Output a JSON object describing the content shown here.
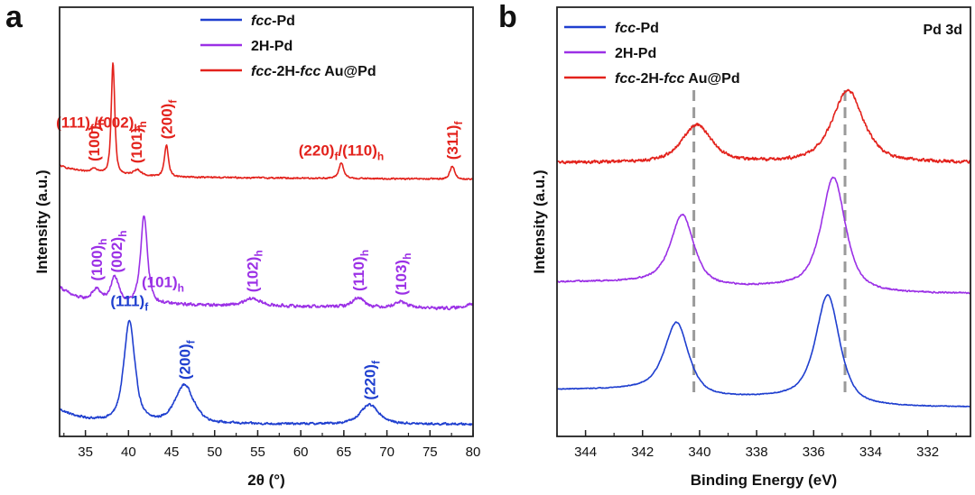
{
  "colors": {
    "fcc_pd": "#1f3fcf",
    "h2_pd": "#9b30e6",
    "au_pd": "#e3221c",
    "ref_line": "#9a9a9a"
  },
  "chart_data": [
    {
      "panel": "a",
      "type": "line",
      "title": "",
      "xlabel": "2θ (°)",
      "ylabel": "Intensity (a.u.)",
      "xlim": [
        32,
        80
      ],
      "xticks": [
        "35",
        "40",
        "45",
        "50",
        "55",
        "60",
        "65",
        "70",
        "75",
        "80"
      ],
      "yticks": [],
      "legend": {
        "position": "top-center",
        "entries": [
          {
            "pre": "",
            "ital": "fcc",
            "post": "-Pd",
            "series": "fcc"
          },
          {
            "pre": "2H-Pd",
            "ital": "",
            "post": "",
            "series": "h2"
          },
          {
            "pre": "",
            "ital": "fcc",
            "post": "-2H-",
            "ital2": "fcc",
            "post2": " Au@Pd",
            "series": "au"
          }
        ]
      },
      "series": [
        {
          "name": "fcc-Pd",
          "key": "fcc",
          "baseline": 0.0,
          "slope": 0.0,
          "start": 0.12,
          "decay": 3.0,
          "noise": 0.013,
          "peaks": [
            {
              "x": 40.1,
              "h": 0.84,
              "w": 0.95
            },
            {
              "x": 46.5,
              "h": 0.32,
              "w": 1.6
            },
            {
              "x": 68.0,
              "h": 0.16,
              "w": 1.6
            }
          ]
        },
        {
          "name": "2H-Pd",
          "key": "h2",
          "baseline": 1.0,
          "slope": -0.0009,
          "start": 0.14,
          "decay": 2.0,
          "noise": 0.018,
          "peaks": [
            {
              "x": 36.3,
              "h": 0.1,
              "w": 0.8
            },
            {
              "x": 38.4,
              "h": 0.21,
              "w": 0.7
            },
            {
              "x": 41.8,
              "h": 0.72,
              "w": 0.6
            },
            {
              "x": 54.4,
              "h": 0.06,
              "w": 1.3
            },
            {
              "x": 66.7,
              "h": 0.08,
              "w": 1.0
            },
            {
              "x": 71.6,
              "h": 0.05,
              "w": 1.0
            },
            {
              "x": 79.6,
              "h": 0.04,
              "w": 0.8
            }
          ]
        },
        {
          "name": "fcc-2H-fcc Au@Pd",
          "key": "au",
          "baseline": 2.05,
          "slope": -0.0005,
          "start": 0.09,
          "decay": 3.5,
          "noise": 0.009,
          "peaks": [
            {
              "x": 36.0,
              "h": 0.04,
              "w": 0.6
            },
            {
              "x": 38.2,
              "h": 0.93,
              "w": 0.3
            },
            {
              "x": 41.0,
              "h": 0.05,
              "w": 0.7
            },
            {
              "x": 44.4,
              "h": 0.26,
              "w": 0.35
            },
            {
              "x": 64.7,
              "h": 0.13,
              "w": 0.4
            },
            {
              "x": 77.6,
              "h": 0.11,
              "w": 0.4
            }
          ]
        }
      ],
      "peak_labels": [
        {
          "main": "(111)",
          "sub": "f",
          "series": "fcc",
          "x": 40.1,
          "dy": 0.12
        },
        {
          "main": "(200)",
          "sub": "f",
          "series": "fcc",
          "x": 46.5,
          "dy": 0.04,
          "rotate": true
        },
        {
          "main": "(220)",
          "sub": "f",
          "series": "fcc",
          "x": 68.0,
          "dy": 0.04,
          "rotate": true
        },
        {
          "main": "(100)",
          "sub": "h",
          "series": "h2",
          "x": 36.3,
          "dy": 0.06,
          "rotate": true
        },
        {
          "main": "(002)",
          "sub": "h",
          "series": "h2",
          "x": 38.6,
          "dy": 0.05,
          "rotate": true
        },
        {
          "main": "(101)",
          "sub": "h",
          "series": "h2",
          "x": 44.0,
          "dy": 0.12
        },
        {
          "main": "(102)",
          "sub": "h",
          "series": "h2",
          "x": 54.4,
          "dy": 0.05,
          "rotate": true
        },
        {
          "main": "(110)",
          "sub": "h",
          "series": "h2",
          "x": 66.7,
          "dy": 0.05,
          "rotate": true
        },
        {
          "main": "(103)",
          "sub": "h",
          "series": "h2",
          "x": 71.6,
          "dy": 0.05,
          "rotate": true
        },
        {
          "main": "(111)",
          "sub": "f",
          "main2": "/(002)",
          "sub2": "h",
          "series": "au",
          "x": 36.5,
          "dy": 0.35
        },
        {
          "main": "(100)",
          "sub": "h",
          "series": "au",
          "x": 36.0,
          "dy": 0.05,
          "rotate": true
        },
        {
          "main": "(101)",
          "sub": "h",
          "series": "au",
          "x": 40.9,
          "dy": 0.05,
          "rotate": true
        },
        {
          "main": "(200)",
          "sub": "f",
          "series": "au",
          "x": 44.4,
          "dy": 0.05,
          "rotate": true
        },
        {
          "main": "(220)",
          "sub": "f",
          "main2": "/(110)",
          "sub2": "h",
          "series": "au",
          "x": 64.7,
          "dy": 0.06
        },
        {
          "main": "(311)",
          "sub": "f",
          "series": "au",
          "x": 77.6,
          "dy": 0.05,
          "rotate": true
        }
      ]
    },
    {
      "panel": "b",
      "type": "line",
      "title": "Pd 3d",
      "xlabel": "Binding Energy (eV)",
      "ylabel": "Intensity (a.u.)",
      "xlim": [
        345,
        330.5
      ],
      "xticks": [
        "344",
        "342",
        "340",
        "338",
        "336",
        "334",
        "332"
      ],
      "yticks": [],
      "reference_lines": [
        340.2,
        334.9
      ],
      "legend": {
        "position": "top-left",
        "entries": [
          {
            "pre": "",
            "ital": "fcc",
            "post": "-Pd",
            "series": "fcc"
          },
          {
            "pre": "2H-Pd",
            "ital": "",
            "post": "",
            "series": "h2"
          },
          {
            "pre": "",
            "ital": "fcc",
            "post": "-2H-",
            "ital2": "fcc",
            "post2": " Au@Pd",
            "series": "au"
          }
        ]
      },
      "series": [
        {
          "name": "fcc-Pd",
          "key": "fcc",
          "baseline": 0.0,
          "slope": 0.0,
          "step": 0.06,
          "noise": 0.004,
          "peaks": [
            {
              "x": 340.8,
              "h": 0.49,
              "w": 0.62
            },
            {
              "x": 335.5,
              "h": 0.74,
              "w": 0.62
            }
          ]
        },
        {
          "name": "2H-Pd",
          "key": "h2",
          "baseline": 0.78,
          "slope": 0.0,
          "step": 0.04,
          "noise": 0.007,
          "peaks": [
            {
              "x": 340.6,
              "h": 0.48,
              "w": 0.6
            },
            {
              "x": 335.3,
              "h": 0.78,
              "w": 0.62
            }
          ]
        },
        {
          "name": "fcc-2H-fcc Au@Pd",
          "key": "au",
          "baseline": 1.68,
          "slope": 0.0,
          "step": 0.0,
          "noise": 0.015,
          "peaks": [
            {
              "x": 340.1,
              "h": 0.26,
              "w": 0.75
            },
            {
              "x": 334.8,
              "h": 0.5,
              "w": 0.8
            }
          ]
        }
      ],
      "peak_labels": []
    }
  ]
}
